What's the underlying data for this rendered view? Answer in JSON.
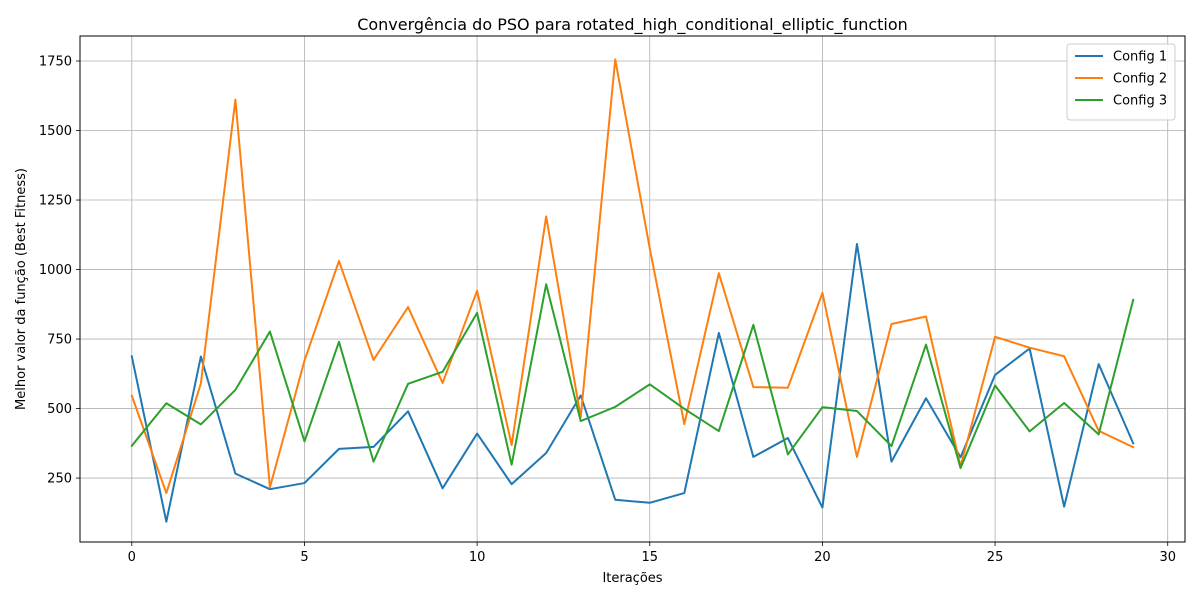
{
  "chart_data": {
    "type": "line",
    "title": "Convergência do PSO para rotated_high_conditional_elliptic_function",
    "xlabel": "Iterações",
    "ylabel": "Melhor valor da função (Best Fitness)",
    "xlim": [
      -1.5,
      30.5
    ],
    "ylim": [
      20,
      1840
    ],
    "xticks": [
      0,
      5,
      10,
      15,
      20,
      25,
      30
    ],
    "yticks": [
      250,
      500,
      750,
      1000,
      1250,
      1500,
      1750
    ],
    "grid": true,
    "legend_position": "top-right",
    "x": [
      0,
      1,
      2,
      3,
      4,
      5,
      6,
      7,
      8,
      9,
      10,
      11,
      12,
      13,
      14,
      15,
      16,
      17,
      18,
      19,
      20,
      21,
      22,
      23,
      24,
      25,
      26,
      27,
      28,
      29
    ],
    "series": [
      {
        "name": "Config 1",
        "color": "#1f77b4",
        "values": [
          688,
          93,
          687,
          266,
          210,
          232,
          355,
          362,
          490,
          213,
          410,
          228,
          340,
          547,
          172,
          161,
          196,
          772,
          326,
          394,
          144,
          1092,
          309,
          537,
          325,
          621,
          716,
          147,
          660,
          375
        ]
      },
      {
        "name": "Config 2",
        "color": "#ff7f0e",
        "values": [
          546,
          196,
          590,
          1611,
          216,
          672,
          1031,
          675,
          865,
          592,
          924,
          369,
          1191,
          469,
          1756,
          1076,
          444,
          987,
          577,
          575,
          916,
          326,
          804,
          831,
          292,
          758,
          719,
          688,
          420,
          361
        ]
      },
      {
        "name": "Config 3",
        "color": "#2ca02c",
        "values": [
          366,
          519,
          443,
          567,
          777,
          382,
          740,
          309,
          589,
          632,
          844,
          298,
          947,
          455,
          506,
          587,
          499,
          419,
          801,
          335,
          505,
          491,
          365,
          730,
          286,
          583,
          418,
          520,
          407,
          891
        ]
      }
    ]
  }
}
